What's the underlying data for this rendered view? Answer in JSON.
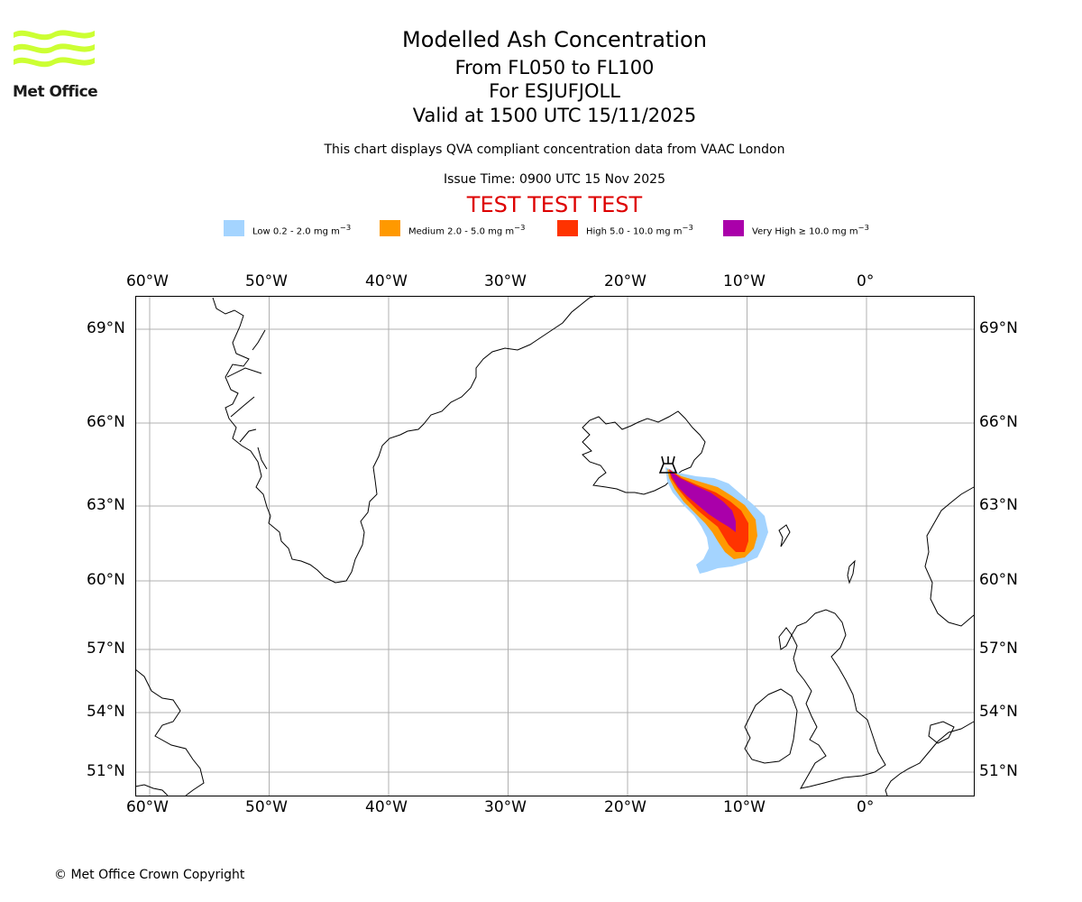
{
  "header": {
    "title": "Modelled Ash Concentration",
    "flight_levels": "From FL050 to FL100",
    "volcano": "For ESJUFJOLL",
    "valid_time": "Valid at 1500 UTC 15/11/2025",
    "qva_note": "This chart displays QVA compliant concentration data from VAAC London",
    "issue_time": "Issue Time: 0900 UTC 15 Nov 2025",
    "test_banner": "TEST TEST TEST"
  },
  "logo": {
    "text": "Met Office",
    "color": "#ccff33"
  },
  "legend": {
    "items": [
      {
        "label_html": "Low 0.2 - 2.0 mg m<sup>−3</sup>",
        "label": "Low 0.2 - 2.0 mg m−3",
        "color": "#a4d4ff"
      },
      {
        "label_html": "Medium 2.0 - 5.0 mg m<sup>−3</sup>",
        "label": "Medium 2.0 - 5.0 mg m−3",
        "color": "#ff9900"
      },
      {
        "label_html": "High 5.0 - 10.0 mg m<sup>−3</sup>",
        "label": "High 5.0 - 10.0 mg m−3",
        "color": "#ff3300"
      },
      {
        "label_html": "Very High ≥ 10.0 mg m<sup>−3</sup>",
        "label": "Very High ≥ 10.0 mg m−3",
        "color": "#aa00aa"
      }
    ]
  },
  "map": {
    "longitude_labels": [
      "60°W",
      "50°W",
      "40°W",
      "30°W",
      "20°W",
      "10°W",
      "0°"
    ],
    "latitude_labels": [
      "69°N",
      "66°N",
      "63°N",
      "60°N",
      "57°N",
      "54°N",
      "51°N"
    ],
    "longitude_values": [
      -60,
      -50,
      -40,
      -30,
      -20,
      -10,
      0
    ],
    "latitude_values": [
      69,
      66,
      63,
      60,
      57,
      54,
      51
    ],
    "volcano_marker": "volcano-icon",
    "volcano_position": {
      "lon": -16.6,
      "lat": 64.65
    }
  },
  "footer": {
    "copyright": "© Met Office Crown Copyright"
  },
  "colors": {
    "test_banner": "#dd0000",
    "grid": "#b0b0b0"
  }
}
